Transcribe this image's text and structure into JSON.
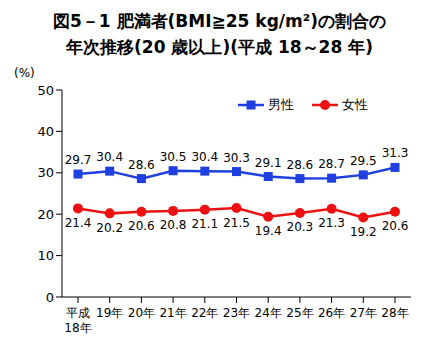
{
  "chart_data": {
    "type": "line",
    "title": "図5－1 肥満者(BMI≧25 kg/m²)の割合の",
    "subtitle": "年次推移(20 歳以上)(平成 18～28 年)",
    "y_label": "(%)",
    "categories": [
      "平成\n18年",
      "19年",
      "20年",
      "21年",
      "22年",
      "23年",
      "24年",
      "25年",
      "26年",
      "27年",
      "28年"
    ],
    "series": [
      {
        "name": "男性",
        "color": "#1f3fe0",
        "marker": "square",
        "values": [
          29.7,
          30.4,
          28.6,
          30.5,
          30.4,
          30.3,
          29.1,
          28.6,
          28.7,
          29.5,
          31.3
        ]
      },
      {
        "name": "女性",
        "color": "#ee1111",
        "marker": "circle",
        "values": [
          21.4,
          20.2,
          20.6,
          20.8,
          21.1,
          21.5,
          19.4,
          20.3,
          21.3,
          19.2,
          20.6
        ]
      }
    ],
    "ylim": [
      0,
      50
    ],
    "yticks": [
      0,
      10,
      20,
      30,
      40,
      50
    ],
    "grid": false,
    "legend": "upper right",
    "data_labels": true
  }
}
